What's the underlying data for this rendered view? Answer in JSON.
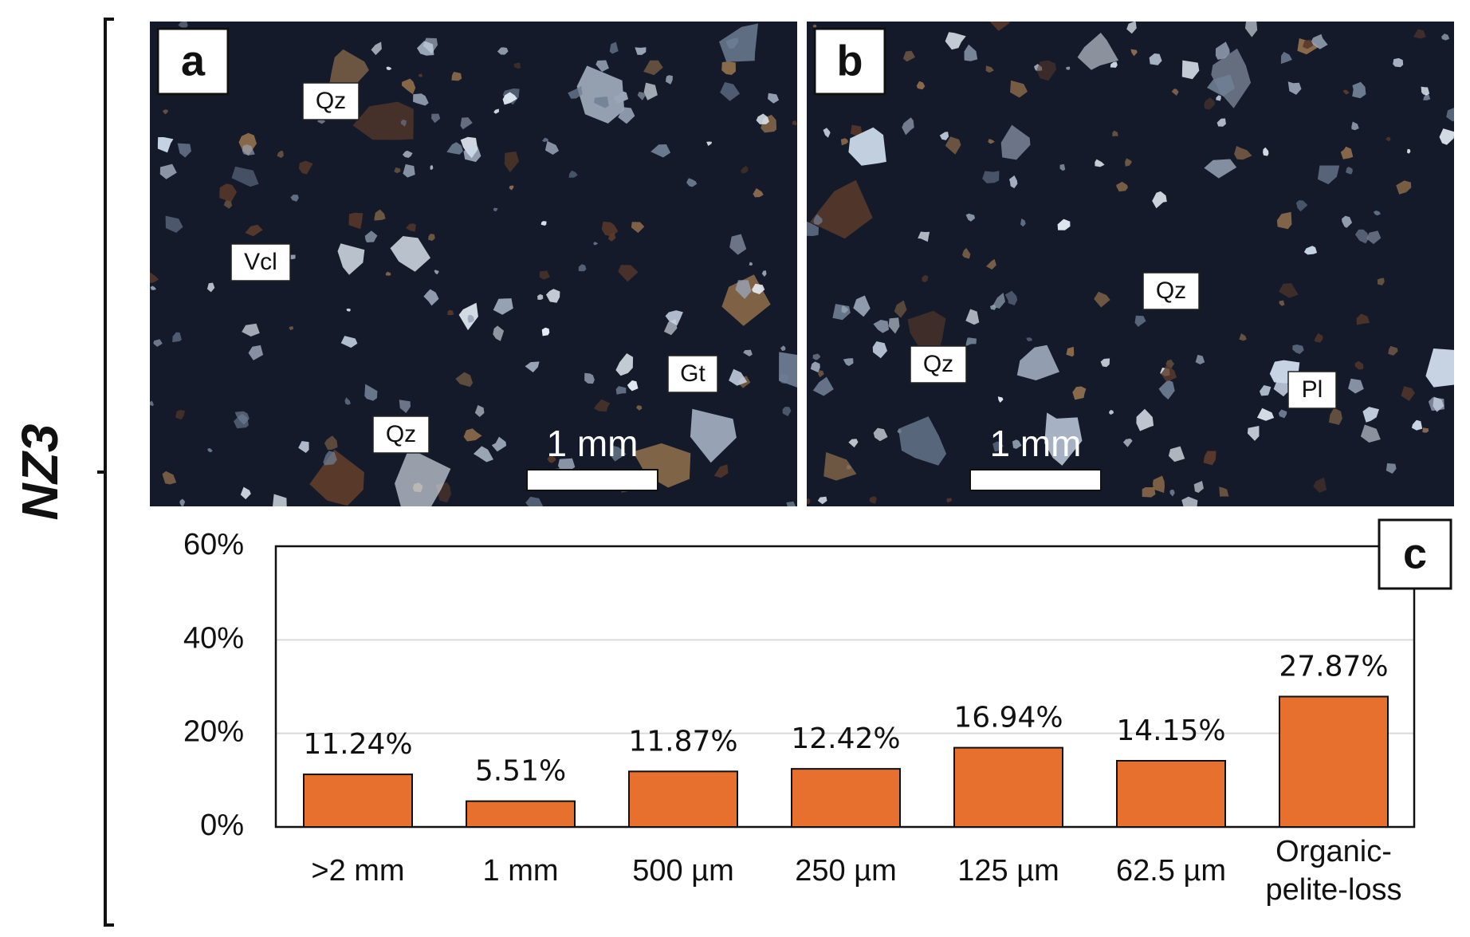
{
  "sample": {
    "label": "NZ3"
  },
  "panels": [
    {
      "letter": "a",
      "minerals": [
        "Qz",
        "Vcl",
        "Gt",
        "Qz"
      ],
      "scale_bar": "1 mm"
    },
    {
      "letter": "b",
      "minerals": [
        "Qz",
        "Qz",
        "Pl"
      ],
      "scale_bar": "1 mm"
    }
  ],
  "chart_panel": {
    "letter": "c"
  },
  "colors": {
    "bar": "#e8702f",
    "micrograph_background": "#141a2a",
    "grains": [
      "#e6eef7",
      "#c9d6e6",
      "#9aa6b8",
      "#6f7e94",
      "#8a6a4a",
      "#5a3a2a"
    ]
  },
  "chart_data": {
    "type": "bar",
    "categories": [
      ">2 mm",
      "1 mm",
      "500 µm",
      "250 µm",
      "125 µm",
      "62.5 µm",
      "Organic-\npelite-loss"
    ],
    "values": [
      11.24,
      5.51,
      11.87,
      12.42,
      16.94,
      14.15,
      27.87
    ],
    "value_labels": [
      "11.24%",
      "5.51%",
      "11.87%",
      "12.42%",
      "16.94%",
      "14.15%",
      "27.87%"
    ],
    "ylim": [
      0,
      60
    ],
    "yticks": [
      0,
      20,
      40,
      60
    ],
    "ytick_labels": [
      "0%",
      "20%",
      "40%",
      "60%"
    ],
    "grid": true,
    "legend": "none"
  }
}
